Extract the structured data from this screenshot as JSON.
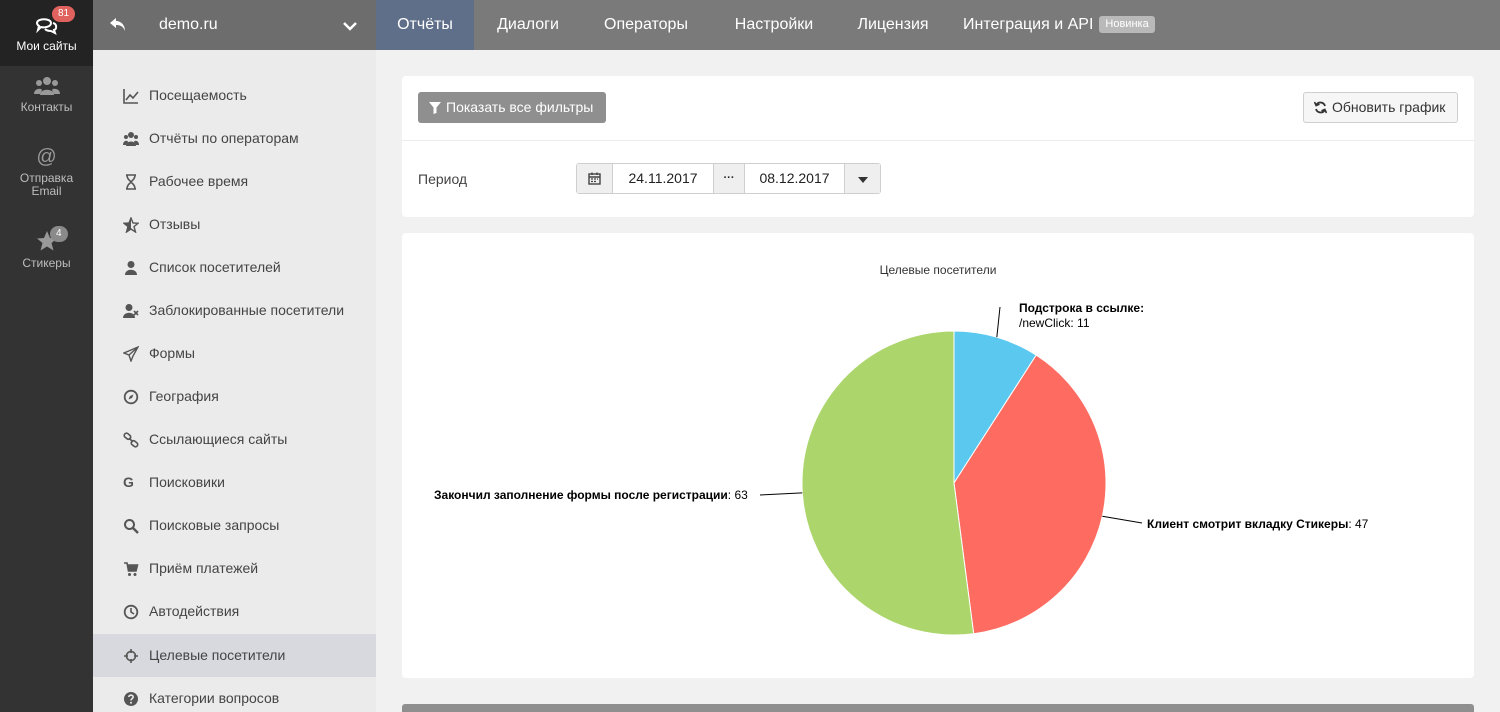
{
  "rail": {
    "items": [
      {
        "label": "Мои сайты",
        "icon": "chat-bubbles-icon",
        "badge": "81"
      },
      {
        "label": "Контакты",
        "icon": "users-icon"
      },
      {
        "label": "Отправка Email",
        "icon": "at-sign-icon"
      },
      {
        "label": "Стикеры",
        "icon": "star-icon",
        "badge": "4"
      }
    ]
  },
  "topbar": {
    "site": "demo.ru",
    "tabs": [
      {
        "label": "Отчёты"
      },
      {
        "label": "Диалоги"
      },
      {
        "label": "Операторы"
      },
      {
        "label": "Настройки"
      },
      {
        "label": "Лицензия"
      },
      {
        "label": "Интеграция и API",
        "badge": "Новинка"
      }
    ]
  },
  "menu": {
    "items": [
      {
        "label": "Посещаемость",
        "icon": "line-chart-icon"
      },
      {
        "label": "Отчёты по операторам",
        "icon": "users-icon"
      },
      {
        "label": "Рабочее время",
        "icon": "hourglass-icon"
      },
      {
        "label": "Отзывы",
        "icon": "star-half-icon"
      },
      {
        "label": "Список посетителей",
        "icon": "user-icon"
      },
      {
        "label": "Заблокированные посетители",
        "icon": "user-times-icon"
      },
      {
        "label": "Формы",
        "icon": "paper-plane-icon"
      },
      {
        "label": "География",
        "icon": "compass-icon"
      },
      {
        "label": "Ссылающиеся сайты",
        "icon": "link-icon"
      },
      {
        "label": "Поисковики",
        "icon": "google-icon"
      },
      {
        "label": "Поисковые запросы",
        "icon": "search-icon"
      },
      {
        "label": "Приём платежей",
        "icon": "cart-icon"
      },
      {
        "label": "Автодействия",
        "icon": "clock-icon"
      },
      {
        "label": "Целевые посетители",
        "icon": "crosshairs-icon"
      },
      {
        "label": "Категории вопросов",
        "icon": "question-circle-icon"
      }
    ]
  },
  "toolbar": {
    "filters_label": "Показать все фильтры",
    "refresh_label": "Обновить график",
    "period_label": "Период",
    "date_from": "24.11.2017",
    "date_to": "08.12.2017",
    "range_sep": "···"
  },
  "chart_data": {
    "type": "pie",
    "title": "Целевые посетители",
    "slices": [
      {
        "name": "Подстрока в ссылке: /newClick",
        "value": 11,
        "color": "#5bc8f0"
      },
      {
        "name": "Клиент смотрит вкладку Стикеры",
        "value": 47,
        "color": "#fe6c61"
      },
      {
        "name": "Закончил заполнение формы после регистрации",
        "value": 63,
        "color": "#acd56c"
      }
    ],
    "labels": {
      "a_title": "Подстрока в ссылке:",
      "a_sub": "/newClick",
      "a_value": "11",
      "b_title": "Клиент смотрит вкладку Стикеры",
      "b_value": "47",
      "c_title": "Закончил заполнение формы после регистрации",
      "c_value": "63"
    }
  }
}
